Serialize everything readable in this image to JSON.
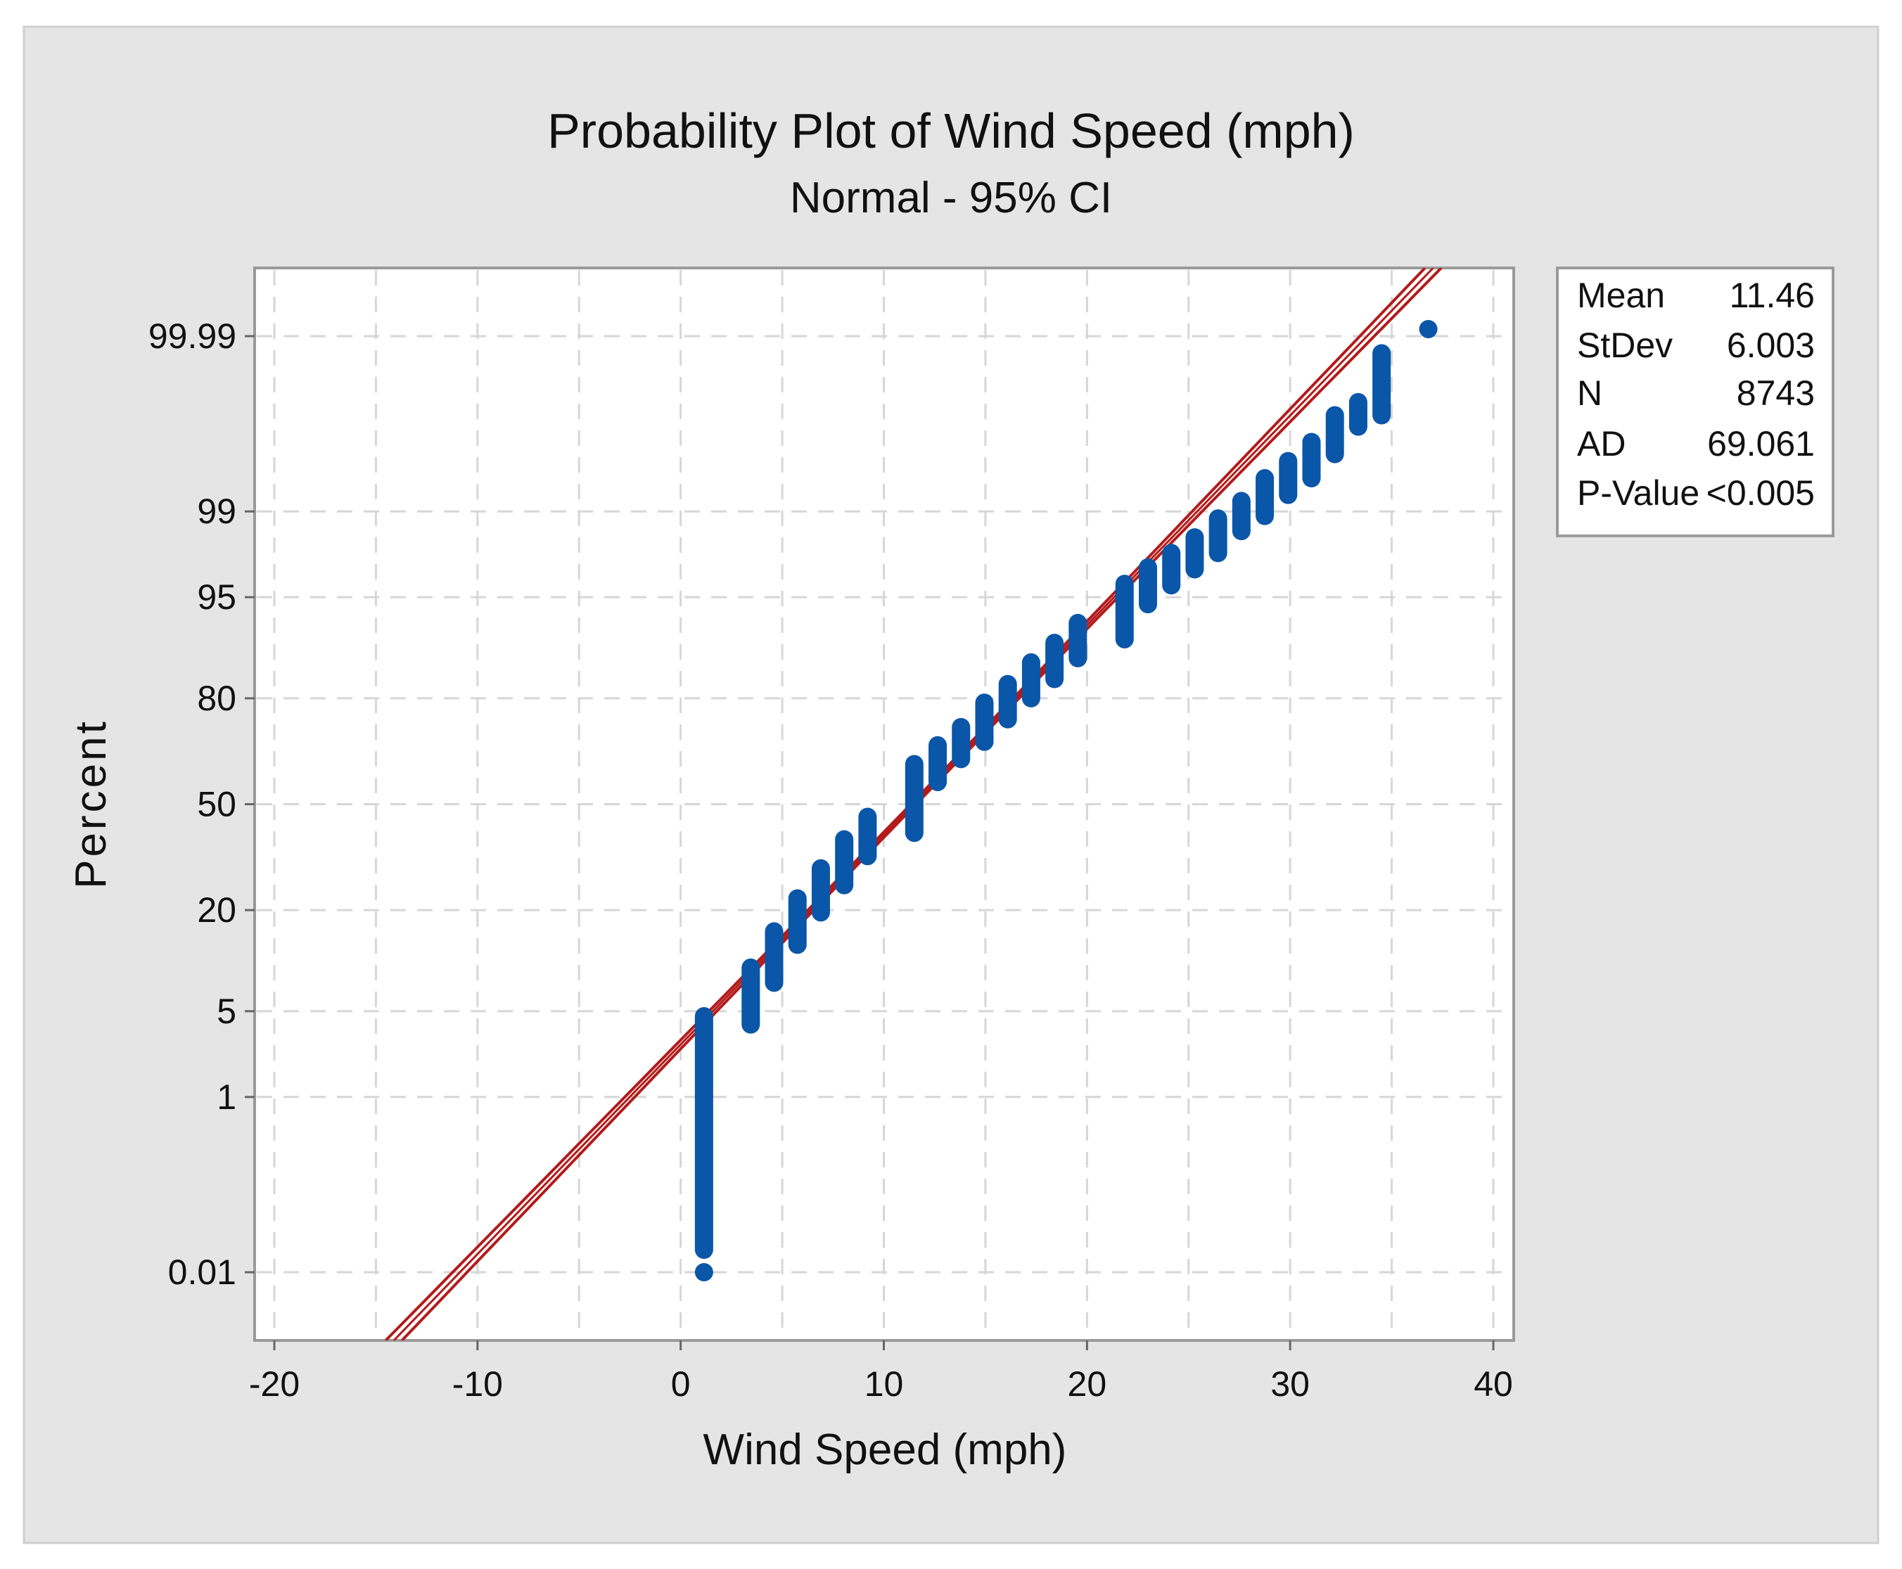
{
  "chart_data": {
    "type": "scatter",
    "title": "Probability Plot of Wind Speed (mph)",
    "subtitle": "Normal - 95% CI",
    "xlabel": "Wind Speed (mph)",
    "ylabel": "Percent",
    "xlim": [
      -21,
      41.5
    ],
    "x_ticks": [
      -20,
      -10,
      0,
      10,
      20,
      30,
      40
    ],
    "x_grid": [
      -20,
      -15,
      -10,
      -5,
      0,
      5,
      10,
      15,
      20,
      25,
      30,
      35,
      40
    ],
    "y_scale": "normal-probability",
    "y_ticks": [
      0.01,
      1,
      5,
      20,
      50,
      80,
      95,
      99,
      99.99
    ],
    "y_tick_labels": [
      "0.01",
      "1",
      "5",
      "20",
      "50",
      "80",
      "95",
      "99",
      "99.99"
    ],
    "grid": true,
    "fit": {
      "mean": 11.46,
      "stdev": 6.003,
      "n": 8743,
      "ci": 0.95,
      "color": "#b31b1b"
    },
    "point_color": "#0a56a8",
    "clusters": [
      {
        "x": 1.15,
        "pct": [
          0.02,
          4.6
        ]
      },
      {
        "x": 3.45,
        "pct": [
          4.0,
          9.7
        ]
      },
      {
        "x": 4.6,
        "pct": [
          7.8,
          15.6
        ]
      },
      {
        "x": 5.75,
        "pct": [
          13.2,
          22.7
        ]
      },
      {
        "x": 6.9,
        "pct": [
          19.5,
          30.5
        ]
      },
      {
        "x": 8.05,
        "pct": [
          26,
          39
        ]
      },
      {
        "x": 9.2,
        "pct": [
          34,
          46
        ]
      },
      {
        "x": 11.5,
        "pct": [
          41,
          62.5
        ]
      },
      {
        "x": 12.65,
        "pct": [
          57,
          68
        ]
      },
      {
        "x": 13.8,
        "pct": [
          64,
          73
        ]
      },
      {
        "x": 14.95,
        "pct": [
          69,
          79
        ]
      },
      {
        "x": 16.1,
        "pct": [
          75,
          83
        ]
      },
      {
        "x": 17.25,
        "pct": [
          80,
          87
        ]
      },
      {
        "x": 18.4,
        "pct": [
          84,
          90
        ]
      },
      {
        "x": 19.55,
        "pct": [
          87.7,
          92.5
        ]
      },
      {
        "x": 21.85,
        "pct": [
          90.5,
          96
        ]
      },
      {
        "x": 23.0,
        "pct": [
          94.4,
          97
        ]
      },
      {
        "x": 24.15,
        "pct": [
          95.9,
          97.7
        ]
      },
      {
        "x": 25.3,
        "pct": [
          96.9,
          98.3
        ]
      },
      {
        "x": 26.45,
        "pct": [
          97.7,
          98.84
        ]
      },
      {
        "x": 27.6,
        "pct": [
          98.5,
          99.2
        ]
      },
      {
        "x": 28.75,
        "pct": [
          98.9,
          99.52
        ]
      },
      {
        "x": 29.9,
        "pct": [
          99.3,
          99.68
        ]
      },
      {
        "x": 31.05,
        "pct": [
          99.52,
          99.8
        ]
      },
      {
        "x": 32.2,
        "pct": [
          99.73,
          99.9
        ]
      },
      {
        "x": 33.35,
        "pct": [
          99.865,
          99.93
        ]
      },
      {
        "x": 34.5,
        "pct": [
          99.9,
          99.983
        ]
      }
    ],
    "points": [
      {
        "x": 1.15,
        "pct": 0.01
      },
      {
        "x": 36.8,
        "pct": 99.992
      }
    ],
    "legend_stats": [
      {
        "label": "Mean",
        "value": "11.46"
      },
      {
        "label": "StDev",
        "value": "6.003"
      },
      {
        "label": "N",
        "value": "8743"
      },
      {
        "label": "AD",
        "value": "69.061"
      },
      {
        "label": "P-Value",
        "value": "<0.005"
      }
    ],
    "legend_placement": "right"
  }
}
